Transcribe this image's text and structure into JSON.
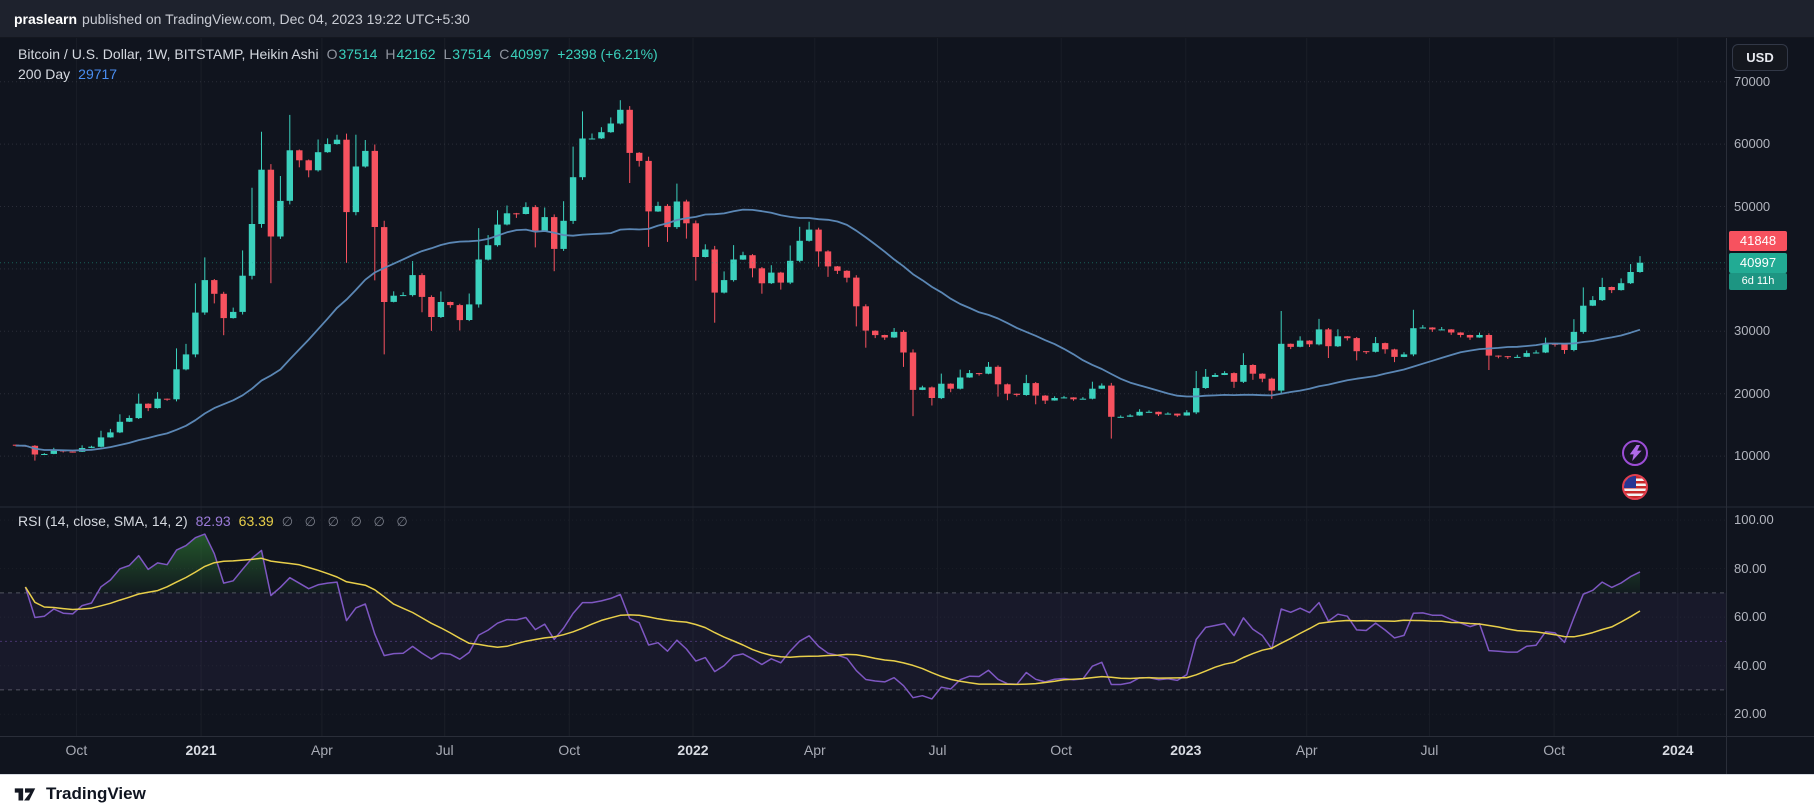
{
  "header": {
    "author": "praslearn",
    "published_text": "published on TradingView.com, Dec 04, 2023 19:22 UTC+5:30"
  },
  "main_chart": {
    "legend_title": "Bitcoin / U.S. Dollar, 1W, BITSTAMP, Heikin Ashi",
    "ohlc": {
      "o_label": "O",
      "o_value": "37514",
      "h_label": "H",
      "h_value": "42162",
      "l_label": "L",
      "l_value": "37514",
      "c_label": "C",
      "c_value": "40997",
      "change": "+2398 (+6.21%)"
    },
    "ma_legend": {
      "label": "200 Day",
      "value": "29717"
    },
    "price_badges": {
      "last": "41848",
      "close": "40997",
      "countdown": "6d 11h"
    },
    "currency_button": "USD"
  },
  "rsi_pane": {
    "legend_title": "RSI (14, close, SMA, 14, 2)",
    "rsi_value": "82.93",
    "sma_value": "63.39",
    "null_values": [
      "∅",
      "∅",
      "∅",
      "∅",
      "∅",
      "∅"
    ]
  },
  "footer": {
    "brand": "TradingView"
  },
  "colors": {
    "up": "#3bd1bd",
    "down": "#f7525f",
    "ma_value_text": "#4a8df0",
    "rsi": "#7e57c2",
    "rsi_sma": "#e8cf4a",
    "rsi_value_text": "#9b7bd8",
    "rsi_fill": "#2e7d32",
    "badge_last_bg": "#f7525f",
    "badge_close_bg": "#22ab94",
    "badge_countdown_bg": "#1d9582",
    "axis_text": "#b2b5be"
  },
  "chart_data": [
    {
      "type": "candlestick",
      "title": "Bitcoin / U.S. Dollar, 1W, BITSTAMP, Heikin Ashi",
      "x_unit": "week",
      "start_week": "2020-08-17",
      "end_week": "2023-12-04",
      "weekly_closes": [
        11680,
        11650,
        10250,
        10340,
        10920,
        10720,
        10690,
        11300,
        11500,
        13000,
        13800,
        15500,
        16100,
        18400,
        17700,
        19200,
        19100,
        23900,
        26300,
        33000,
        38200,
        36000,
        32100,
        33100,
        38900,
        47200,
        55900,
        45200,
        50900,
        59000,
        57400,
        55800,
        58700,
        60000,
        60700,
        49100,
        56400,
        58900,
        46700,
        34700,
        35700,
        35800,
        39000,
        35500,
        32300,
        34700,
        34200,
        31800,
        34300,
        41500,
        43800,
        47100,
        48900,
        48800,
        49900,
        46100,
        48300,
        43200,
        47700,
        54700,
        60900,
        60900,
        61900,
        63300,
        65500,
        58600,
        57300,
        49200,
        50100,
        46700,
        50800,
        47300,
        41900,
        43100,
        36200,
        38200,
        41500,
        42200,
        40100,
        37700,
        39400,
        37800,
        41300,
        44500,
        46300,
        42800,
        40400,
        39700,
        38600,
        34000,
        30100,
        29400,
        29000,
        29900,
        26600,
        20600,
        21000,
        19300,
        21600,
        20800,
        22600,
        23300,
        23200,
        24300,
        21500,
        20000,
        19800,
        21700,
        19700,
        18900,
        19300,
        19400,
        19100,
        19200,
        20800,
        21300,
        16300,
        16300,
        16500,
        17100,
        17100,
        16700,
        16800,
        16500,
        17000,
        20900,
        22700,
        23000,
        23300,
        21900,
        24600,
        23200,
        22400,
        20500,
        28000,
        27500,
        28500,
        27900,
        30300,
        27600,
        29200,
        28900,
        26800,
        26700,
        28100,
        27100,
        25900,
        26300,
        30500,
        30600,
        30300,
        30300,
        29800,
        29400,
        29000,
        29400,
        26100,
        26000,
        25900,
        25900,
        26500,
        26600,
        28000,
        27900,
        27000,
        29900,
        34100,
        35000,
        37100,
        36600,
        37700,
        39500,
        40997
      ],
      "last_candle": {
        "open": 37514,
        "high": 42162,
        "low": 37514,
        "close": 40997,
        "change": "+2398 (+6.21%)"
      },
      "overlays": [
        {
          "name": "200 Day",
          "current_value": 29717,
          "period_weeks": 29,
          "color": "#5b87b5"
        }
      ],
      "y_axis": {
        "ticks": [
          70000,
          60000,
          50000,
          40000,
          30000,
          20000,
          10000
        ],
        "range": [
          2000,
          77000
        ]
      },
      "x_ticks": [
        {
          "label": "Oct",
          "week": 6.4
        },
        {
          "label": "2021",
          "week": 19.6,
          "year": true
        },
        {
          "label": "Apr",
          "week": 32.4
        },
        {
          "label": "Jul",
          "week": 45.4
        },
        {
          "label": "Oct",
          "week": 58.6
        },
        {
          "label": "2022",
          "week": 71.7,
          "year": true
        },
        {
          "label": "Apr",
          "week": 84.6
        },
        {
          "label": "Jul",
          "week": 97.6
        },
        {
          "label": "Oct",
          "week": 110.7
        },
        {
          "label": "2023",
          "week": 123.9,
          "year": true
        },
        {
          "label": "Apr",
          "week": 136.7
        },
        {
          "label": "Jul",
          "week": 149.7
        },
        {
          "label": "Oct",
          "week": 162.9
        },
        {
          "label": "2024",
          "week": 176,
          "year": true
        }
      ],
      "last_price_lines": [
        {
          "value": 41848,
          "color": "#f7525f"
        },
        {
          "value": 40997,
          "color": "#22ab94"
        }
      ],
      "grid": true,
      "legend_position": "top-left"
    },
    {
      "type": "line",
      "title": "RSI (14, close, SMA, 14, 2)",
      "series": [
        {
          "name": "RSI",
          "current": 82.93,
          "color": "#7e57c2",
          "derived_from": "RSI(14) of weekly_closes"
        },
        {
          "name": "RSI-based MA",
          "current": 63.39,
          "color": "#e8cf4a",
          "derived_from": "SMA(14) of RSI"
        }
      ],
      "levels": {
        "overbought": 70,
        "middle": 50,
        "oversold": 30
      },
      "y_axis": {
        "ticks": [
          100,
          80,
          60,
          40,
          20
        ],
        "range": [
          11,
          105
        ]
      },
      "band_fill": "rgba(126,87,194,0.08)",
      "overbought_fill": "#2e7d32"
    }
  ]
}
